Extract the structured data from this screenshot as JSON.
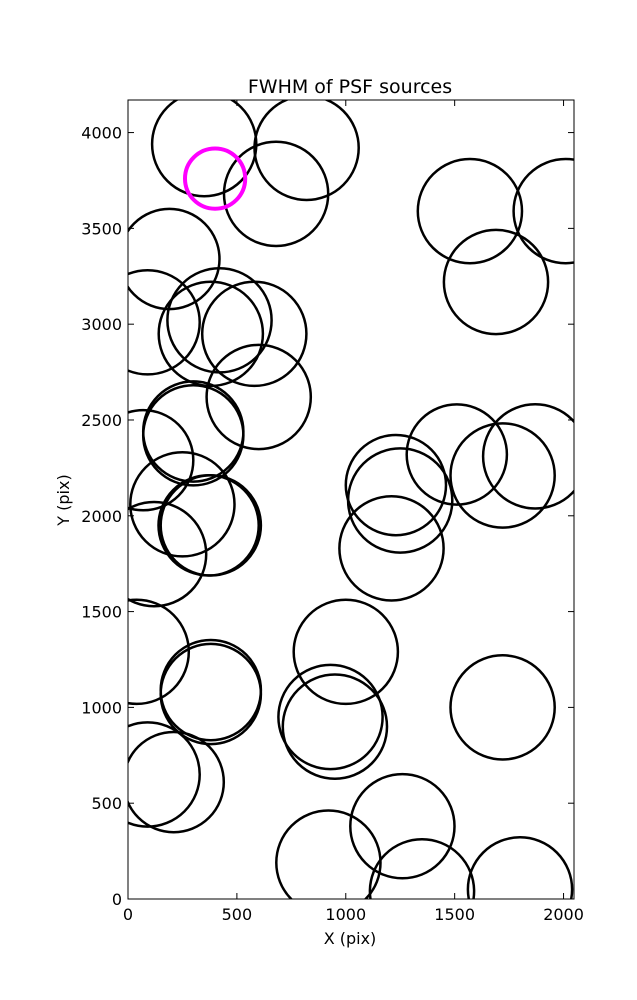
{
  "chart_data": {
    "type": "scatter",
    "title": "FWHM of PSF sources",
    "xlabel": "X (pix)",
    "ylabel": "Y (pix)",
    "xlim": [
      0,
      2048
    ],
    "ylim": [
      0,
      4170
    ],
    "xticks": [
      0,
      500,
      1000,
      1500,
      2000
    ],
    "yticks": [
      0,
      500,
      1000,
      1500,
      2000,
      2500,
      3000,
      3500,
      4000
    ],
    "grid": false,
    "marker": "open-circle",
    "series": [
      {
        "color": "#000000",
        "points": [
          {
            "x": 350,
            "y": 3940,
            "r": 52
          },
          {
            "x": 820,
            "y": 3920,
            "r": 52
          },
          {
            "x": 680,
            "y": 3680,
            "r": 52
          },
          {
            "x": 190,
            "y": 3340,
            "r": 50
          },
          {
            "x": 90,
            "y": 3010,
            "r": 52
          },
          {
            "x": 420,
            "y": 3020,
            "r": 52
          },
          {
            "x": 380,
            "y": 2950,
            "r": 52
          },
          {
            "x": 580,
            "y": 2950,
            "r": 52
          },
          {
            "x": 600,
            "y": 2620,
            "r": 52
          },
          {
            "x": 300,
            "y": 2440,
            "r": 50
          },
          {
            "x": 300,
            "y": 2420,
            "r": 50
          },
          {
            "x": 70,
            "y": 2290,
            "r": 50
          },
          {
            "x": 250,
            "y": 2060,
            "r": 52
          },
          {
            "x": 380,
            "y": 1950,
            "r": 50
          },
          {
            "x": 370,
            "y": 1950,
            "r": 50
          },
          {
            "x": 120,
            "y": 1800,
            "r": 52
          },
          {
            "x": 40,
            "y": 1290,
            "r": 52
          },
          {
            "x": 380,
            "y": 1090,
            "r": 50
          },
          {
            "x": 380,
            "y": 1070,
            "r": 50
          },
          {
            "x": 90,
            "y": 650,
            "r": 52
          },
          {
            "x": 210,
            "y": 610,
            "r": 50
          },
          {
            "x": 1000,
            "y": 1290,
            "r": 52
          },
          {
            "x": 930,
            "y": 950,
            "r": 52
          },
          {
            "x": 950,
            "y": 900,
            "r": 52
          },
          {
            "x": 1570,
            "y": 3590,
            "r": 52
          },
          {
            "x": 2010,
            "y": 3590,
            "r": 52
          },
          {
            "x": 1690,
            "y": 3220,
            "r": 52
          },
          {
            "x": 1230,
            "y": 2160,
            "r": 50
          },
          {
            "x": 1250,
            "y": 2080,
            "r": 52
          },
          {
            "x": 1510,
            "y": 2320,
            "r": 50
          },
          {
            "x": 1870,
            "y": 2310,
            "r": 52
          },
          {
            "x": 1720,
            "y": 2210,
            "r": 52
          },
          {
            "x": 1210,
            "y": 1830,
            "r": 52
          },
          {
            "x": 1720,
            "y": 1000,
            "r": 52
          },
          {
            "x": 1260,
            "y": 380,
            "r": 52
          },
          {
            "x": 920,
            "y": 190,
            "r": 52
          },
          {
            "x": 1350,
            "y": 40,
            "r": 52
          },
          {
            "x": 1800,
            "y": 50,
            "r": 52
          }
        ]
      },
      {
        "color": "#ff00ff",
        "points": [
          {
            "x": 400,
            "y": 3760,
            "r": 30
          }
        ]
      }
    ]
  }
}
